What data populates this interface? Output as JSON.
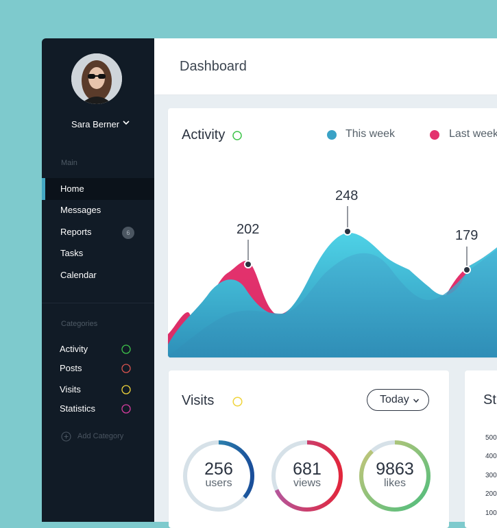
{
  "sidebar": {
    "user_name": "Sara Berner",
    "main_label": "Main",
    "nav": [
      {
        "label": "Home",
        "active": true,
        "badge": ""
      },
      {
        "label": "Messages",
        "active": false,
        "badge": ""
      },
      {
        "label": "Reports",
        "active": false,
        "badge": "6"
      },
      {
        "label": "Tasks",
        "active": false,
        "badge": ""
      },
      {
        "label": "Calendar",
        "active": false,
        "badge": ""
      }
    ],
    "categories_label": "Categories",
    "categories": [
      {
        "label": "Activity",
        "color": "#3ec44a"
      },
      {
        "label": "Posts",
        "color": "#d9534f"
      },
      {
        "label": "Visits",
        "color": "#f0d43a"
      },
      {
        "label": "Statistics",
        "color": "#d63c9e"
      }
    ],
    "add_category": "Add Category"
  },
  "header": {
    "title": "Dashboard"
  },
  "activity": {
    "title": "Activity",
    "title_ring_color": "#3ec44a",
    "legend": [
      {
        "label": "This week",
        "color": "#3aa2c6"
      },
      {
        "label": "Last week",
        "color": "#e3336e"
      }
    ],
    "peaks": [
      "202",
      "248",
      "179"
    ]
  },
  "visits": {
    "title": "Visits",
    "title_ring_color": "#f0d43a",
    "period": "Today",
    "stats": [
      {
        "value": "256",
        "unit": "users",
        "fraction": 0.36,
        "color": "#3aa2c6"
      },
      {
        "value": "681",
        "unit": "views",
        "fraction": 0.68,
        "color": "#e03163"
      },
      {
        "value": "9863",
        "unit": "likes",
        "fraction": 0.88,
        "color": "#8ccb6a"
      }
    ]
  },
  "statistics": {
    "title": "St",
    "ticks": [
      "500",
      "400",
      "300",
      "200",
      "100"
    ]
  },
  "colors": {
    "background": "#7ecacd",
    "sidebar": "#111b26",
    "accent": "#44a8c3"
  }
}
